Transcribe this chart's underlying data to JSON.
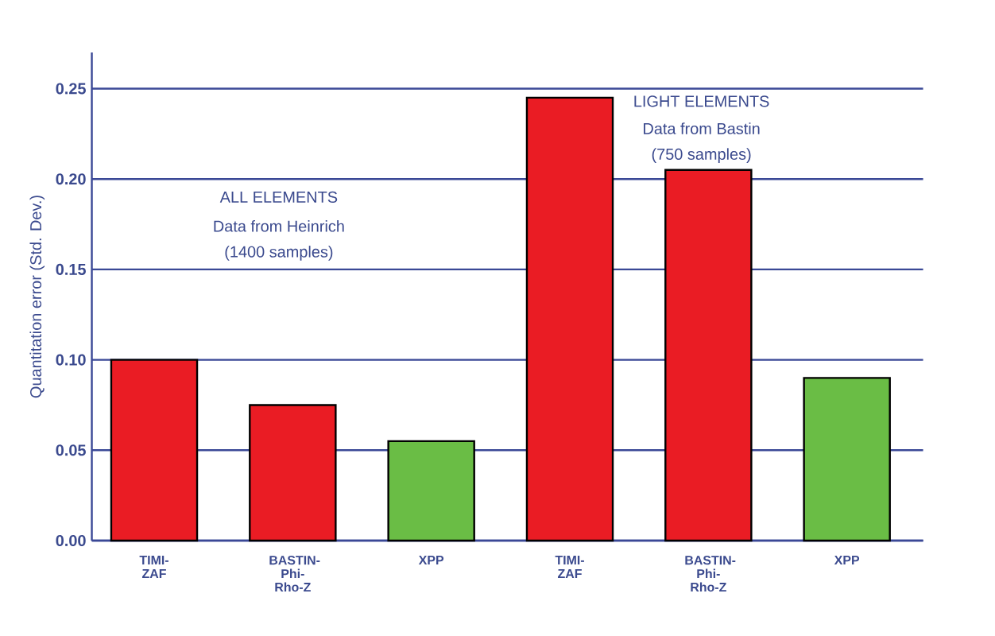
{
  "chart_data": {
    "type": "bar",
    "ylabel": "Quantitation error (Std. Dev.)",
    "categories": [
      "TIMI-ZAF",
      "BASTIN-Phi-Rho-Z",
      "XPP",
      "TIMI-ZAF",
      "BASTIN-Phi-Rho-Z",
      "XPP"
    ],
    "values": [
      0.1,
      0.075,
      0.055,
      0.245,
      0.205,
      0.09
    ],
    "colors": [
      "#ea1c24",
      "#ea1c24",
      "#6abd45",
      "#ea1c24",
      "#ea1c24",
      "#6abd45"
    ],
    "ylim": [
      0,
      0.27
    ],
    "yticks": [
      {
        "value": 0,
        "label": "0.00"
      },
      {
        "value": 0.05,
        "label": "0.05"
      },
      {
        "value": 0.1,
        "label": "0.10"
      },
      {
        "value": 0.15,
        "label": "0.15"
      },
      {
        "value": 0.2,
        "label": "0.20"
      },
      {
        "value": 0.25,
        "label": "0.25"
      }
    ],
    "grid": "y",
    "annotations": [
      "ALL ELEMENTS",
      "Data from Heinrich",
      "(1400 samples)",
      "LIGHT ELEMENTS",
      "Data from Bastin",
      "(750 samples)"
    ]
  }
}
